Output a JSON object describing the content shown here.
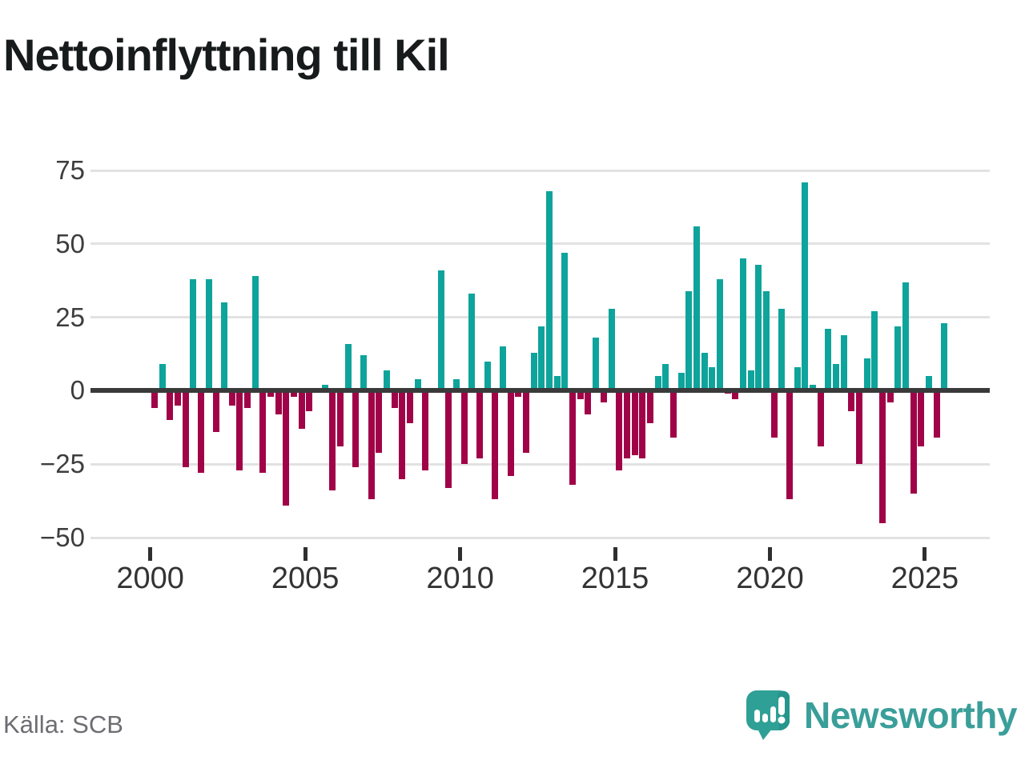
{
  "title": "Nettoinflyttning till Kil",
  "footer": {
    "source": "Källa: SCB",
    "logo_text": "Newsworthy"
  },
  "colors": {
    "positive_bar": "#0ea49b",
    "negative_bar": "#a00347",
    "zero_axis": "#3a3a3a",
    "gridline": "#e2e2e2",
    "title_text": "#181b1c",
    "tick_text": "#3d3d3d",
    "source_text": "#6d6d72",
    "logo_teal": "#3a9e99",
    "logo_bubble": "#2fa096"
  },
  "chart_data": {
    "type": "bar",
    "title": "Nettoinflyttning till Kil",
    "frequency": "quarterly",
    "start_year": 2000,
    "start_quarter": 1,
    "end_year": 2025,
    "end_quarter": 3,
    "ylim": [
      -50,
      75
    ],
    "grid": true,
    "yticks": [
      {
        "value": 75,
        "label": "75"
      },
      {
        "value": 50,
        "label": "50"
      },
      {
        "value": 25,
        "label": "25"
      },
      {
        "value": 0,
        "label": "0"
      },
      {
        "value": -25,
        "label": "−25"
      },
      {
        "value": -50,
        "label": "−50"
      }
    ],
    "xticks": [
      {
        "year": 2000,
        "label": "2000"
      },
      {
        "year": 2005,
        "label": "2005"
      },
      {
        "year": 2010,
        "label": "2010"
      },
      {
        "year": 2015,
        "label": "2015"
      },
      {
        "year": 2020,
        "label": "2020"
      },
      {
        "year": 2025,
        "label": "2025"
      }
    ],
    "values": [
      -6,
      9,
      -10,
      -5,
      -26,
      38,
      -28,
      38,
      -14,
      30,
      -5,
      -27,
      -6,
      39,
      -28,
      -2,
      -8,
      -39,
      -2,
      -13,
      -7,
      1,
      2,
      -34,
      -19,
      16,
      -26,
      12,
      -37,
      -21,
      7,
      -6,
      -30,
      -11,
      4,
      -27,
      0,
      41,
      -33,
      4,
      -25,
      33,
      -23,
      10,
      -37,
      15,
      -29,
      -2,
      -21,
      13,
      22,
      68,
      5,
      47,
      -32,
      -3,
      -8,
      18,
      -4,
      28,
      -27,
      -23,
      -22,
      -23,
      -11,
      5,
      9,
      -16,
      6,
      34,
      56,
      13,
      8,
      38,
      -1,
      -3,
      45,
      7,
      43,
      34,
      -16,
      28,
      -37,
      8,
      71,
      2,
      -19,
      21,
      9,
      19,
      -7,
      -25,
      11,
      27,
      -45,
      -4,
      22,
      37,
      -35,
      -19,
      5,
      -16,
      23
    ]
  }
}
